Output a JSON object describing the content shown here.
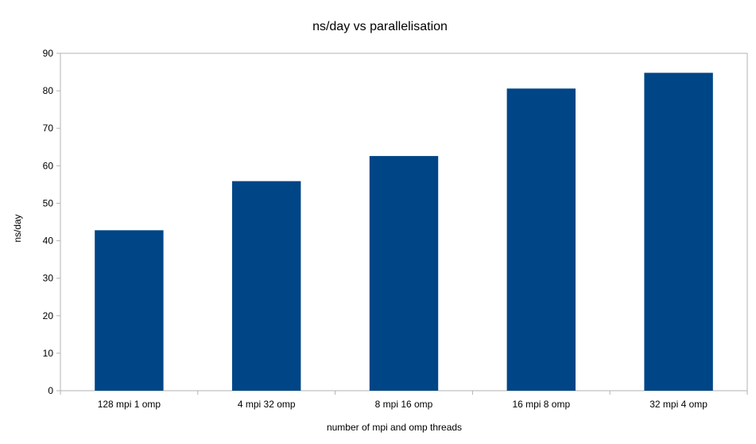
{
  "chart_data": {
    "type": "bar",
    "title": "ns/day vs parallelisation",
    "xlabel": "number of mpi and omp threads",
    "ylabel": "ns/day",
    "categories": [
      "128 mpi 1 omp",
      "4 mpi 32 omp",
      "8 mpi 16 omp",
      "16 mpi 8 omp",
      "32 mpi 4 omp"
    ],
    "values": [
      42.8,
      55.9,
      62.6,
      80.6,
      84.8
    ],
    "ylim": [
      0,
      90
    ],
    "yticks": [
      0,
      10,
      20,
      30,
      40,
      50,
      60,
      70,
      80,
      90
    ],
    "grid": false,
    "legend": "none",
    "bar_color": "#004586"
  }
}
